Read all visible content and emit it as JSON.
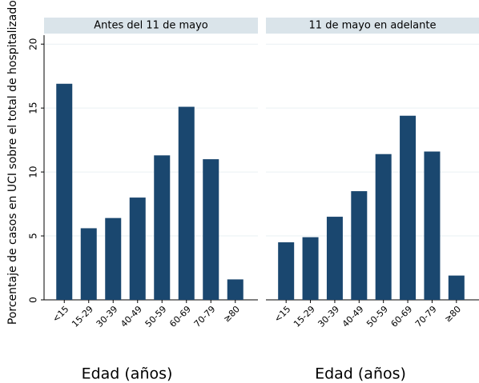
{
  "chart_data": [
    {
      "type": "bar",
      "title": "Antes del 11 de mayo",
      "ylabel": "Porcentaje de casos en UCI sobre el total de hospitalizados",
      "xlabel": "Edad (años)",
      "categories": [
        "<15",
        "15-29",
        "30-39",
        "40-49",
        "50-59",
        "60-69",
        "70-79",
        "≥80"
      ],
      "values": [
        16.9,
        5.6,
        6.4,
        8.0,
        11.3,
        15.1,
        11.0,
        1.6
      ],
      "color": "#1a476f",
      "ylim": [
        0,
        20.7
      ],
      "yticks": [
        0,
        5,
        10,
        15,
        20
      ],
      "grid": true
    },
    {
      "type": "bar",
      "title": "11 de mayo en adelante",
      "xlabel": "Edad (años)",
      "categories": [
        "<15",
        "15-29",
        "30-39",
        "40-49",
        "50-59",
        "60-69",
        "70-79",
        "≥80"
      ],
      "values": [
        4.5,
        4.9,
        6.5,
        8.5,
        11.4,
        14.4,
        11.6,
        1.9
      ],
      "color": "#1a476f",
      "ylim": [
        0,
        20.7
      ],
      "yticks": [
        0,
        5,
        10,
        15,
        20
      ],
      "grid": true
    }
  ]
}
